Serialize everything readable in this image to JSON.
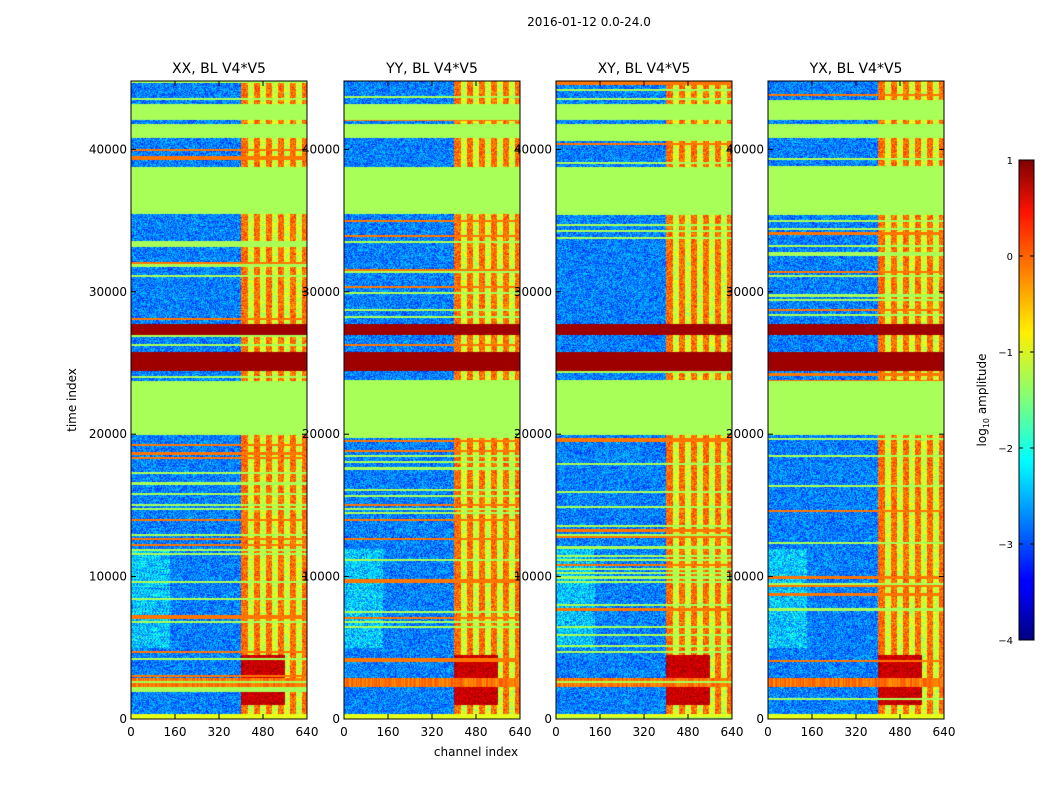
{
  "chart_data": {
    "type": "heatmap",
    "suptitle": "2016-01-12 0.0-24.0",
    "xlabel": "channel index",
    "ylabel": "time index",
    "xlim": [
      0,
      640
    ],
    "ylim": [
      0,
      44800
    ],
    "xticks": [
      0,
      160,
      320,
      480,
      640
    ],
    "yticks": [
      0,
      10000,
      20000,
      30000,
      40000
    ],
    "panels": [
      {
        "title": "XX, BL V4*V5",
        "pol": "XX"
      },
      {
        "title": "YY, BL V4*V5",
        "pol": "YY"
      },
      {
        "title": "XY, BL V4*V5",
        "pol": "XY"
      },
      {
        "title": "YX, BL V4*V5",
        "pol": "YX"
      }
    ],
    "colorbar": {
      "label": "log10 amplitude",
      "label_main": "log",
      "label_sub": "10",
      "label_tail": " amplitude",
      "range": [
        -4,
        1
      ],
      "ticks": [
        -4,
        -3,
        -2,
        -1,
        0,
        1
      ],
      "tick_labels": [
        "−4",
        "−3",
        "−2",
        "−1",
        "0",
        "1"
      ],
      "colormap": "jet"
    },
    "features": {
      "flagged_value": -1.3,
      "rfi_channel_band": [
        400,
        640
      ],
      "flagged_time_blocks": [
        [
          35500,
          38800
        ],
        [
          40800,
          41800
        ],
        [
          42100,
          43200
        ],
        [
          20000,
          23800
        ]
      ],
      "high_amplitude_bands": [
        [
          24500,
          25800
        ],
        [
          27000,
          27800
        ]
      ],
      "bright_low_time_region": [
        1000,
        4500
      ]
    }
  }
}
